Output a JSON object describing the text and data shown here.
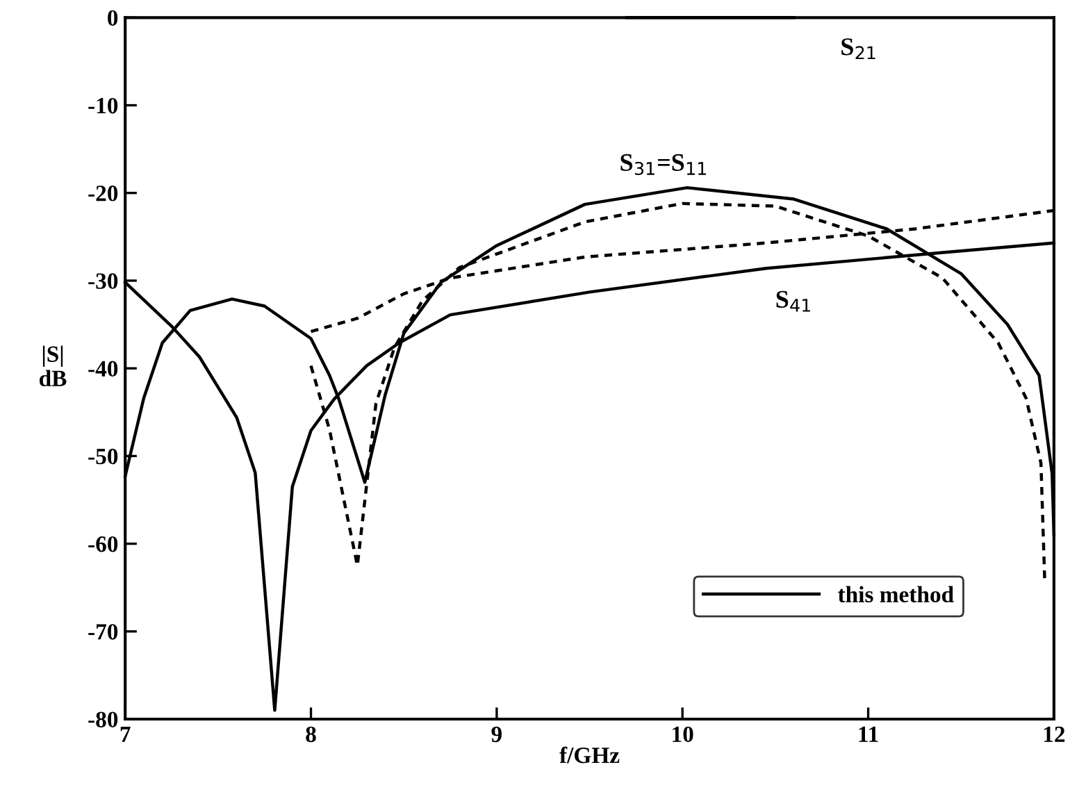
{
  "chart_data": {
    "type": "line",
    "xlabel": "f/GHz",
    "ylabel": "|S|\ndB",
    "xlim": [
      7,
      12
    ],
    "ylim": [
      -80,
      0
    ],
    "xticks": [
      7,
      8,
      9,
      10,
      11,
      12
    ],
    "yticks": [
      0,
      -10,
      -20,
      -30,
      -40,
      -50,
      -60,
      -70,
      -80
    ],
    "grid": false,
    "legend": "bottom right",
    "marker": "none",
    "series": [
      {
        "name": "this method",
        "color": "#000000",
        "line_style": "solid",
        "x": [
          7,
          7.1,
          7.2,
          7.35,
          7.575,
          7.75,
          8.0,
          8.1,
          8.15,
          8.29,
          8.4,
          8.5,
          8.7,
          9.0,
          9.475,
          10.025,
          10.6,
          11.1,
          11.5,
          11.75,
          11.92,
          11.99,
          12.0
        ],
        "values": [
          -52.3,
          -43.4,
          -37.1,
          -33.4,
          -32.1,
          -32.9,
          -36.6,
          -40.8,
          -43.5,
          -53,
          -43,
          -36,
          -30.2,
          -26,
          -21.3,
          -19.4,
          -20.7,
          -24.1,
          -29.2,
          -35,
          -40.8,
          -52,
          -59
        ]
      },
      {
        "color": "#000000",
        "line_style": "solid",
        "x": [
          7,
          7.25,
          7.4,
          7.6,
          7.7,
          7.805,
          7.9,
          8.0,
          8.125,
          8.3,
          8.475,
          8.75,
          9.5,
          10.45,
          11.4,
          12.0
        ],
        "values": [
          -30.2,
          -35.2,
          -38.7,
          -45.6,
          -51.9,
          -79,
          -53.5,
          -47.1,
          -43.5,
          -39.7,
          -37.1,
          -33.9,
          -31.3,
          -28.6,
          -26.8,
          -25.7
        ]
      },
      {
        "color": "#000000",
        "line_style": "solid",
        "x": [
          9.7,
          10.6
        ],
        "values": [
          0,
          0
        ]
      },
      {
        "color": "#000000",
        "line_style": "dashed",
        "x": [
          8.0,
          8.1,
          8.25,
          8.35,
          8.45,
          8.6,
          8.8,
          9.475,
          10.0,
          10.5,
          11.0,
          11.4,
          11.7,
          11.85,
          11.93,
          11.95
        ],
        "values": [
          -39.7,
          -47,
          -62.5,
          -44,
          -37.6,
          -32.3,
          -28.5,
          -23.3,
          -21.2,
          -21.5,
          -24.9,
          -29.7,
          -37.1,
          -43.4,
          -50.8,
          -64
        ]
      },
      {
        "color": "#000000",
        "line_style": "dashed",
        "x": [
          8.0,
          8.25,
          8.5,
          8.75,
          9.475,
          10.45,
          11.25,
          12.0
        ],
        "values": [
          -35.8,
          -34.3,
          -31.5,
          -29.7,
          -27.3,
          -25.7,
          -24.1,
          -22
        ]
      }
    ],
    "annotations": [
      "S$_{21}$",
      "S$_{31}$=S$_{11}$",
      "S$_{41}$"
    ]
  }
}
